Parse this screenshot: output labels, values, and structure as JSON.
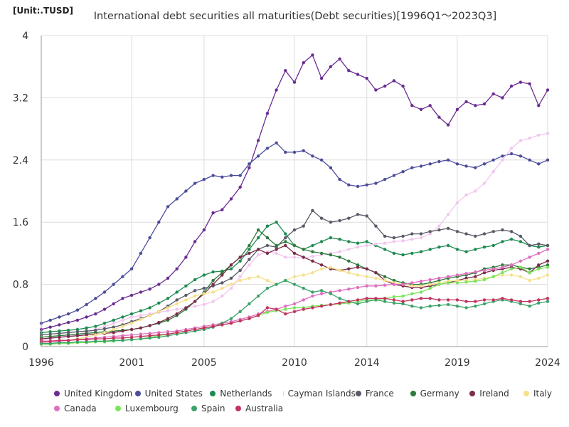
{
  "chart_data": {
    "type": "line",
    "title": "International debt securities all maturities(Debt securities)[1996Q1～2023Q3]",
    "unit_label": "[Unit:.TUSD]",
    "xlabel": "",
    "ylabel": "",
    "xlim": [
      1996,
      2024
    ],
    "ylim": [
      0,
      4
    ],
    "x_ticks": [
      "1996",
      "2001",
      "2005",
      "2010",
      "2014",
      "2019",
      "2024"
    ],
    "y_ticks": [
      "0",
      "0.8",
      "1.6",
      "2.4",
      "3.2",
      "4"
    ],
    "grid": "vertical and horizontal",
    "legend_position": "bottom",
    "x": [
      1996.0,
      1996.5,
      1997.0,
      1997.5,
      1998.0,
      1998.5,
      1999.0,
      1999.5,
      2000.0,
      2000.5,
      2001.0,
      2001.5,
      2002.0,
      2002.5,
      2003.0,
      2003.5,
      2004.0,
      2004.5,
      2005.0,
      2005.5,
      2006.0,
      2006.5,
      2007.0,
      2007.5,
      2008.0,
      2008.5,
      2009.0,
      2009.5,
      2010.0,
      2010.5,
      2011.0,
      2011.5,
      2012.0,
      2012.5,
      2013.0,
      2013.5,
      2014.0,
      2014.5,
      2015.0,
      2015.5,
      2016.0,
      2016.5,
      2017.0,
      2017.5,
      2018.0,
      2018.5,
      2019.0,
      2019.5,
      2020.0,
      2020.5,
      2021.0,
      2021.5,
      2022.0,
      2022.5,
      2023.0,
      2023.5,
      2024.0
    ],
    "series": [
      {
        "name": "United Kingdom",
        "color": "#6a2c91",
        "values": [
          0.22,
          0.25,
          0.28,
          0.31,
          0.34,
          0.38,
          0.42,
          0.48,
          0.55,
          0.62,
          0.66,
          0.7,
          0.74,
          0.8,
          0.88,
          1.0,
          1.15,
          1.35,
          1.5,
          1.72,
          1.76,
          1.9,
          2.05,
          2.3,
          2.65,
          3.0,
          3.3,
          3.55,
          3.4,
          3.65,
          3.75,
          3.45,
          3.6,
          3.7,
          3.55,
          3.5,
          3.45,
          3.3,
          3.35,
          3.42,
          3.35,
          3.1,
          3.05,
          3.1,
          2.95,
          2.85,
          3.05,
          3.15,
          3.1,
          3.12,
          3.25,
          3.2,
          3.35,
          3.4,
          3.38,
          3.1,
          3.3
        ]
      },
      {
        "name": "United States",
        "color": "#4c4d9a",
        "values": [
          0.3,
          0.34,
          0.38,
          0.42,
          0.47,
          0.54,
          0.62,
          0.7,
          0.8,
          0.9,
          1.0,
          1.2,
          1.4,
          1.6,
          1.8,
          1.9,
          2.0,
          2.1,
          2.15,
          2.2,
          2.18,
          2.2,
          2.2,
          2.35,
          2.45,
          2.55,
          2.62,
          2.5,
          2.5,
          2.52,
          2.45,
          2.4,
          2.3,
          2.15,
          2.08,
          2.06,
          2.08,
          2.1,
          2.15,
          2.2,
          2.25,
          2.3,
          2.32,
          2.35,
          2.38,
          2.4,
          2.35,
          2.32,
          2.3,
          2.35,
          2.4,
          2.45,
          2.48,
          2.45,
          2.4,
          2.35,
          2.4
        ]
      },
      {
        "name": "Netherlands",
        "color": "#1e8a52",
        "values": [
          0.18,
          0.19,
          0.2,
          0.21,
          0.22,
          0.24,
          0.26,
          0.3,
          0.34,
          0.38,
          0.42,
          0.46,
          0.5,
          0.56,
          0.62,
          0.7,
          0.78,
          0.86,
          0.92,
          0.96,
          0.97,
          1.0,
          1.1,
          1.25,
          1.4,
          1.55,
          1.6,
          1.45,
          1.3,
          1.25,
          1.3,
          1.35,
          1.4,
          1.38,
          1.35,
          1.33,
          1.35,
          1.3,
          1.25,
          1.2,
          1.18,
          1.2,
          1.22,
          1.25,
          1.28,
          1.3,
          1.25,
          1.22,
          1.25,
          1.28,
          1.3,
          1.35,
          1.38,
          1.35,
          1.3,
          1.28,
          1.3
        ]
      },
      {
        "name": "Cayman Islands",
        "color": "#f2c7ef",
        "values": [
          0.08,
          0.1,
          0.12,
          0.14,
          0.16,
          0.18,
          0.22,
          0.26,
          0.3,
          0.34,
          0.38,
          0.4,
          0.42,
          0.44,
          0.46,
          0.48,
          0.5,
          0.52,
          0.54,
          0.58,
          0.65,
          0.75,
          0.9,
          1.05,
          1.18,
          1.22,
          1.2,
          1.15,
          1.15,
          1.14,
          1.16,
          1.18,
          1.2,
          1.22,
          1.25,
          1.28,
          1.3,
          1.32,
          1.33,
          1.35,
          1.36,
          1.38,
          1.4,
          1.45,
          1.55,
          1.7,
          1.85,
          1.95,
          2.0,
          2.1,
          2.25,
          2.4,
          2.55,
          2.65,
          2.68,
          2.72,
          2.74
        ]
      },
      {
        "name": "France",
        "color": "#5a5a68",
        "values": [
          0.15,
          0.16,
          0.17,
          0.18,
          0.19,
          0.2,
          0.21,
          0.23,
          0.25,
          0.28,
          0.32,
          0.36,
          0.4,
          0.45,
          0.52,
          0.6,
          0.66,
          0.72,
          0.75,
          0.78,
          0.82,
          0.88,
          0.98,
          1.12,
          1.25,
          1.3,
          1.28,
          1.4,
          1.5,
          1.55,
          1.75,
          1.65,
          1.6,
          1.62,
          1.65,
          1.7,
          1.68,
          1.55,
          1.42,
          1.4,
          1.42,
          1.45,
          1.45,
          1.48,
          1.5,
          1.52,
          1.48,
          1.45,
          1.42,
          1.45,
          1.48,
          1.5,
          1.48,
          1.42,
          1.3,
          1.32,
          1.3
        ]
      },
      {
        "name": "Germany",
        "color": "#2c7a3a",
        "values": [
          0.12,
          0.13,
          0.14,
          0.15,
          0.16,
          0.17,
          0.18,
          0.19,
          0.2,
          0.21,
          0.22,
          0.24,
          0.27,
          0.3,
          0.34,
          0.4,
          0.48,
          0.58,
          0.7,
          0.85,
          0.95,
          1.05,
          1.15,
          1.3,
          1.5,
          1.4,
          1.3,
          1.35,
          1.3,
          1.25,
          1.22,
          1.2,
          1.18,
          1.15,
          1.1,
          1.05,
          1.0,
          0.95,
          0.9,
          0.85,
          0.82,
          0.8,
          0.8,
          0.82,
          0.85,
          0.88,
          0.9,
          0.92,
          0.95,
          1.0,
          1.02,
          1.05,
          1.05,
          1.02,
          1.0,
          1.02,
          1.05
        ]
      },
      {
        "name": "Ireland",
        "color": "#7b2d4a",
        "values": [
          0.1,
          0.11,
          0.12,
          0.13,
          0.14,
          0.15,
          0.16,
          0.17,
          0.18,
          0.2,
          0.22,
          0.24,
          0.27,
          0.31,
          0.36,
          0.42,
          0.5,
          0.58,
          0.68,
          0.8,
          0.92,
          1.05,
          1.15,
          1.2,
          1.25,
          1.2,
          1.25,
          1.3,
          1.2,
          1.15,
          1.1,
          1.05,
          1.0,
          0.98,
          1.0,
          1.02,
          1.0,
          0.95,
          0.85,
          0.8,
          0.78,
          0.76,
          0.76,
          0.78,
          0.8,
          0.82,
          0.85,
          0.88,
          0.9,
          0.95,
          0.98,
          1.0,
          1.02,
          1.0,
          0.95,
          1.05,
          1.1
        ]
      },
      {
        "name": "Italy",
        "color": "#f7e08a",
        "values": [
          0.05,
          0.06,
          0.07,
          0.08,
          0.1,
          0.12,
          0.15,
          0.18,
          0.22,
          0.26,
          0.3,
          0.35,
          0.4,
          0.45,
          0.5,
          0.55,
          0.6,
          0.65,
          0.68,
          0.7,
          0.75,
          0.8,
          0.85,
          0.88,
          0.9,
          0.85,
          0.8,
          0.85,
          0.9,
          0.92,
          0.95,
          1.0,
          1.02,
          0.98,
          0.95,
          0.92,
          0.9,
          0.88,
          0.85,
          0.82,
          0.8,
          0.78,
          0.78,
          0.8,
          0.82,
          0.84,
          0.85,
          0.85,
          0.86,
          0.88,
          0.9,
          0.92,
          0.92,
          0.9,
          0.85,
          0.88,
          0.92
        ]
      },
      {
        "name": "Canada",
        "color": "#e06fc0",
        "values": [
          0.05,
          0.06,
          0.07,
          0.08,
          0.09,
          0.1,
          0.11,
          0.12,
          0.13,
          0.14,
          0.15,
          0.16,
          0.17,
          0.18,
          0.19,
          0.2,
          0.22,
          0.24,
          0.26,
          0.28,
          0.3,
          0.32,
          0.35,
          0.38,
          0.42,
          0.45,
          0.48,
          0.52,
          0.55,
          0.6,
          0.65,
          0.68,
          0.7,
          0.72,
          0.74,
          0.76,
          0.78,
          0.78,
          0.79,
          0.8,
          0.8,
          0.82,
          0.84,
          0.86,
          0.88,
          0.9,
          0.92,
          0.94,
          0.96,
          0.98,
          1.0,
          1.02,
          1.05,
          1.1,
          1.15,
          1.2,
          1.25
        ]
      },
      {
        "name": "Luxembourg",
        "color": "#7be45a",
        "values": [
          0.03,
          0.03,
          0.04,
          0.04,
          0.05,
          0.05,
          0.06,
          0.06,
          0.07,
          0.08,
          0.09,
          0.1,
          0.12,
          0.14,
          0.16,
          0.18,
          0.2,
          0.22,
          0.24,
          0.26,
          0.28,
          0.3,
          0.33,
          0.36,
          0.4,
          0.44,
          0.46,
          0.48,
          0.5,
          0.5,
          0.52,
          0.53,
          0.54,
          0.55,
          0.56,
          0.58,
          0.6,
          0.6,
          0.62,
          0.64,
          0.65,
          0.68,
          0.7,
          0.75,
          0.8,
          0.82,
          0.82,
          0.83,
          0.84,
          0.86,
          0.9,
          0.95,
          1.0,
          1.02,
          0.95,
          1.0,
          1.02
        ]
      },
      {
        "name": "Spain",
        "color": "#3aa36a",
        "values": [
          0.04,
          0.04,
          0.05,
          0.05,
          0.06,
          0.06,
          0.07,
          0.07,
          0.08,
          0.08,
          0.09,
          0.1,
          0.11,
          0.12,
          0.14,
          0.16,
          0.18,
          0.2,
          0.22,
          0.25,
          0.3,
          0.36,
          0.45,
          0.55,
          0.65,
          0.75,
          0.8,
          0.85,
          0.8,
          0.75,
          0.7,
          0.72,
          0.68,
          0.62,
          0.58,
          0.55,
          0.58,
          0.6,
          0.58,
          0.56,
          0.55,
          0.52,
          0.5,
          0.52,
          0.53,
          0.54,
          0.52,
          0.5,
          0.52,
          0.55,
          0.58,
          0.6,
          0.58,
          0.55,
          0.52,
          0.56,
          0.58
        ]
      },
      {
        "name": "Australia",
        "color": "#c2335e",
        "values": [
          0.07,
          0.07,
          0.08,
          0.08,
          0.09,
          0.09,
          0.1,
          0.1,
          0.11,
          0.11,
          0.12,
          0.13,
          0.14,
          0.15,
          0.16,
          0.18,
          0.2,
          0.22,
          0.24,
          0.26,
          0.28,
          0.3,
          0.33,
          0.36,
          0.4,
          0.5,
          0.48,
          0.42,
          0.45,
          0.48,
          0.5,
          0.52,
          0.54,
          0.56,
          0.58,
          0.6,
          0.62,
          0.62,
          0.62,
          0.6,
          0.58,
          0.6,
          0.62,
          0.62,
          0.6,
          0.6,
          0.6,
          0.58,
          0.58,
          0.6,
          0.6,
          0.62,
          0.6,
          0.58,
          0.58,
          0.6,
          0.62
        ]
      }
    ]
  }
}
